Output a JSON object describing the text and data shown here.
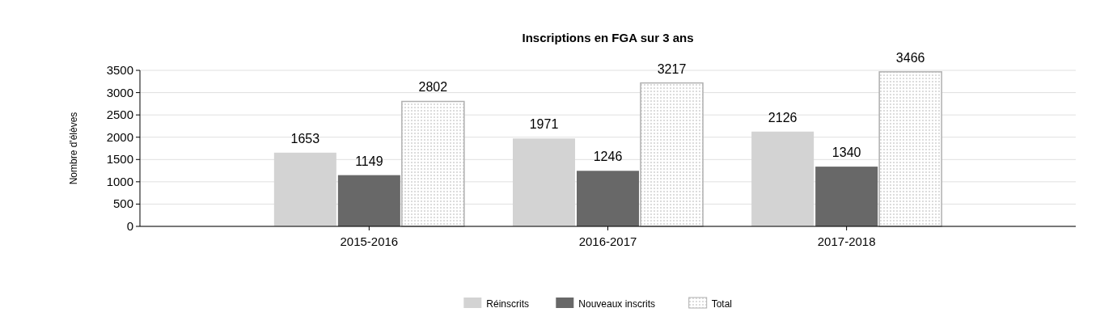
{
  "chart_data": {
    "type": "bar",
    "title": "Inscriptions en FGA sur 3 ans",
    "ylabel": "Nombre d'élèves",
    "categories": [
      "2015-2016",
      "2016-2017",
      "2017-2018"
    ],
    "series": [
      {
        "name": "Réinscrits",
        "color": "#d3d3d3",
        "values": [
          1653,
          1971,
          2126
        ]
      },
      {
        "name": "Nouveaux inscrits",
        "color": "#686868",
        "values": [
          1149,
          1246,
          1340
        ]
      },
      {
        "name": "Total",
        "color": "#b0b0b0",
        "values": [
          2802,
          3217,
          3466
        ]
      }
    ],
    "ylim": [
      0,
      3500
    ],
    "yticks": [
      0,
      500,
      1000,
      1500,
      2000,
      2500,
      3000,
      3500
    ],
    "grid": "y",
    "legend": "bottom",
    "data_labels": true
  }
}
